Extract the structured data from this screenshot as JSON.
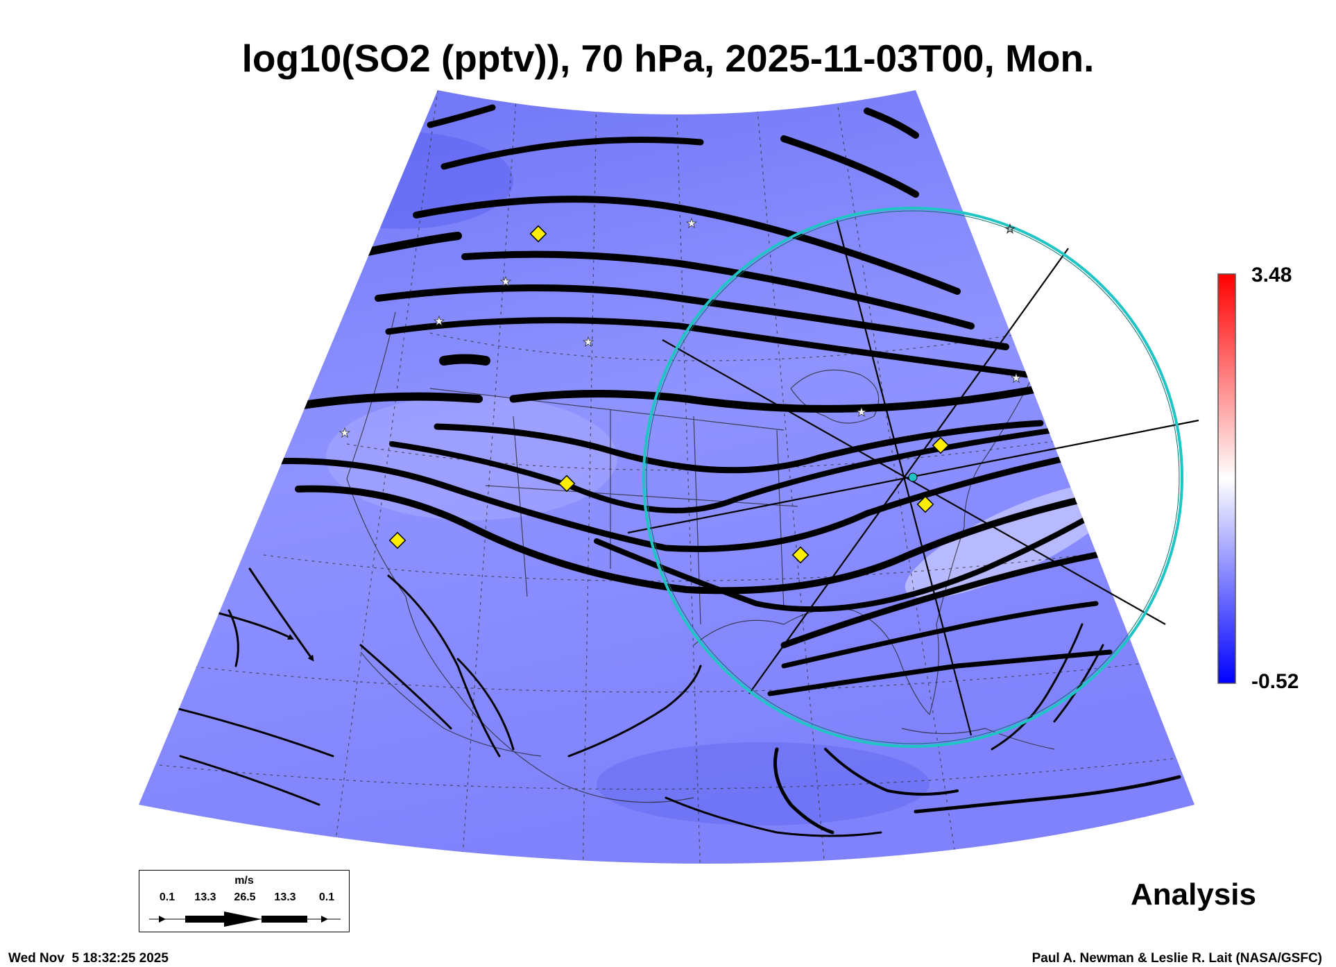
{
  "title": "log10(SO2 (pptv)), 70 hPa, 2025-11-03T00, Mon.",
  "colorbar": {
    "max_label": "3.48",
    "min_label": "-0.52",
    "colors": [
      "#0000ff",
      "#ffffff",
      "#ff0000"
    ]
  },
  "legend": {
    "unit": "m/s",
    "ticks": [
      "0.1",
      "13.3",
      "26.5",
      "13.3",
      "0.1"
    ]
  },
  "product_label": "Analysis",
  "footer": {
    "timestamp": "Wed Nov  5 18:32:25 2025",
    "credit": "Paul A. Newman & Leslie R. Lait (NASA/GSFC)"
  },
  "map": {
    "background_color": "#8a8cff",
    "ring_color": "#1fc4c4",
    "site_marker_color": "#ffee00",
    "station_marker_color": "#ffffff"
  }
}
